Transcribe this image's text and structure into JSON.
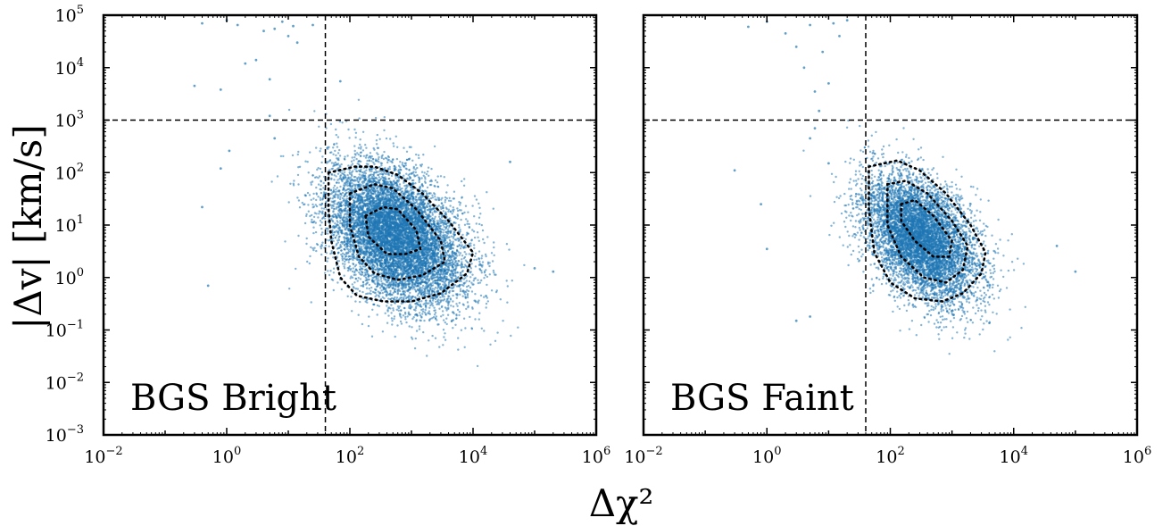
{
  "figure": {
    "ylabel": "|Δv| [km/s]",
    "xlabel": "Δχ²"
  },
  "chart_data": [
    {
      "type": "scatter",
      "title": "BGS Bright",
      "xscale": "log",
      "yscale": "log",
      "xlim": [
        0.01,
        1000000
      ],
      "ylim": [
        0.001,
        100000
      ],
      "x_ticks": [
        {
          "base": "10",
          "exp": "−2"
        },
        {
          "base": "10",
          "exp": "0"
        },
        {
          "base": "10",
          "exp": "2"
        },
        {
          "base": "10",
          "exp": "4"
        },
        {
          "base": "10",
          "exp": "6"
        }
      ],
      "y_ticks": [
        {
          "base": "10",
          "exp": "−3"
        },
        {
          "base": "10",
          "exp": "−2"
        },
        {
          "base": "10",
          "exp": "−1"
        },
        {
          "base": "10",
          "exp": "0"
        },
        {
          "base": "10",
          "exp": "1"
        },
        {
          "base": "10",
          "exp": "2"
        },
        {
          "base": "10",
          "exp": "3"
        },
        {
          "base": "10",
          "exp": "4"
        },
        {
          "base": "10",
          "exp": "5"
        }
      ],
      "show_y_tick_labels": true,
      "point_color": "#1f77b4",
      "reference_lines": {
        "vertical_x": 40,
        "horizontal_y": 1000
      },
      "cloud": {
        "center_log_x": 2.75,
        "center_log_y": 0.8,
        "sigma_log_x": 0.55,
        "sigma_log_y": 0.65,
        "correlation": -0.4,
        "n_points": 9000
      },
      "outliers": [
        [
          0.3,
          4500
        ],
        [
          0.8,
          3800
        ],
        [
          1.0,
          80000
        ],
        [
          1.5,
          65000
        ],
        [
          2,
          12000
        ],
        [
          3,
          14000
        ],
        [
          4,
          50000
        ],
        [
          5,
          6000
        ],
        [
          6,
          55000
        ],
        [
          8,
          75000
        ],
        [
          10,
          40000
        ],
        [
          12,
          62000
        ],
        [
          14,
          30000
        ],
        [
          25,
          65000
        ],
        [
          70,
          5500
        ],
        [
          0.4,
          70000
        ],
        [
          5,
          1200
        ],
        [
          6,
          450
        ],
        [
          1.1,
          260
        ],
        [
          0.8,
          120
        ],
        [
          0.5,
          0.7
        ],
        [
          0.4,
          22
        ],
        [
          100000,
          1.5
        ],
        [
          40000,
          160
        ],
        [
          200000,
          1.3
        ]
      ],
      "contours": [
        {
          "style": "dotted",
          "points": [
            [
              45,
              100
            ],
            [
              120,
              130
            ],
            [
              250,
              130
            ],
            [
              600,
              90
            ],
            [
              1500,
              40
            ],
            [
              4000,
              12
            ],
            [
              10000,
              3
            ],
            [
              8000,
              1.2
            ],
            [
              3000,
              0.5
            ],
            [
              1000,
              0.35
            ],
            [
              350,
              0.35
            ],
            [
              130,
              0.45
            ],
            [
              70,
              1
            ],
            [
              50,
              5
            ],
            [
              45,
              20
            ],
            [
              45,
              100
            ]
          ]
        },
        {
          "style": "dotted",
          "points": [
            [
              100,
              40
            ],
            [
              250,
              60
            ],
            [
              500,
              50
            ],
            [
              1200,
              20
            ],
            [
              3000,
              5
            ],
            [
              3500,
              2
            ],
            [
              1500,
              1.1
            ],
            [
              600,
              0.9
            ],
            [
              250,
              1.2
            ],
            [
              140,
              2.5
            ],
            [
              100,
              10
            ],
            [
              100,
              40
            ]
          ]
        },
        {
          "style": "dotted",
          "points": [
            [
              180,
              15
            ],
            [
              350,
              22
            ],
            [
              600,
              20
            ],
            [
              1200,
              8
            ],
            [
              1400,
              3.5
            ],
            [
              800,
              2.8
            ],
            [
              400,
              2.8
            ],
            [
              200,
              6
            ],
            [
              180,
              15
            ]
          ]
        }
      ]
    },
    {
      "type": "scatter",
      "title": "BGS Faint",
      "xscale": "log",
      "yscale": "log",
      "xlim": [
        0.01,
        1000000
      ],
      "ylim": [
        0.001,
        100000
      ],
      "x_ticks": [
        {
          "base": "10",
          "exp": "−2"
        },
        {
          "base": "10",
          "exp": "0"
        },
        {
          "base": "10",
          "exp": "2"
        },
        {
          "base": "10",
          "exp": "4"
        },
        {
          "base": "10",
          "exp": "6"
        }
      ],
      "y_ticks": [],
      "show_y_tick_labels": false,
      "point_color": "#1f77b4",
      "reference_lines": {
        "vertical_x": 40,
        "horizontal_y": 1000
      },
      "cloud": {
        "center_log_x": 2.5,
        "center_log_y": 0.75,
        "sigma_log_x": 0.45,
        "sigma_log_y": 0.6,
        "correlation": -0.45,
        "n_points": 7000
      },
      "outliers": [
        [
          0.5,
          60000
        ],
        [
          1,
          75000
        ],
        [
          2,
          45000
        ],
        [
          3,
          25000
        ],
        [
          4,
          10000
        ],
        [
          5,
          65000
        ],
        [
          6,
          3500
        ],
        [
          8,
          20000
        ],
        [
          10,
          5000
        ],
        [
          12,
          70000
        ],
        [
          15,
          40000
        ],
        [
          20,
          80000
        ],
        [
          6,
          700
        ],
        [
          7,
          1500
        ],
        [
          5,
          450
        ],
        [
          0.3,
          110
        ],
        [
          0.8,
          25
        ],
        [
          1,
          3.5
        ],
        [
          3,
          0.15
        ],
        [
          5,
          0.18
        ],
        [
          100000,
          1.3
        ],
        [
          50000,
          4
        ],
        [
          10,
          150
        ]
      ],
      "contours": [
        {
          "style": "dotted",
          "points": [
            [
              45,
              130
            ],
            [
              130,
              170
            ],
            [
              300,
              110
            ],
            [
              800,
              40
            ],
            [
              2000,
              10
            ],
            [
              3500,
              3
            ],
            [
              3000,
              1.2
            ],
            [
              1500,
              0.5
            ],
            [
              700,
              0.35
            ],
            [
              250,
              0.4
            ],
            [
              100,
              0.8
            ],
            [
              55,
              3
            ],
            [
              45,
              20
            ],
            [
              45,
              130
            ]
          ]
        },
        {
          "style": "dotted",
          "points": [
            [
              90,
              60
            ],
            [
              180,
              70
            ],
            [
              400,
              40
            ],
            [
              1000,
              12
            ],
            [
              1800,
              4
            ],
            [
              1500,
              1.4
            ],
            [
              800,
              0.8
            ],
            [
              350,
              1
            ],
            [
              150,
              2.5
            ],
            [
              90,
              10
            ],
            [
              90,
              60
            ]
          ]
        },
        {
          "style": "dotted",
          "points": [
            [
              150,
              25
            ],
            [
              250,
              30
            ],
            [
              500,
              15
            ],
            [
              1000,
              5
            ],
            [
              900,
              2.5
            ],
            [
              500,
              2.5
            ],
            [
              250,
              5
            ],
            [
              150,
              12
            ],
            [
              150,
              25
            ]
          ]
        }
      ]
    }
  ]
}
